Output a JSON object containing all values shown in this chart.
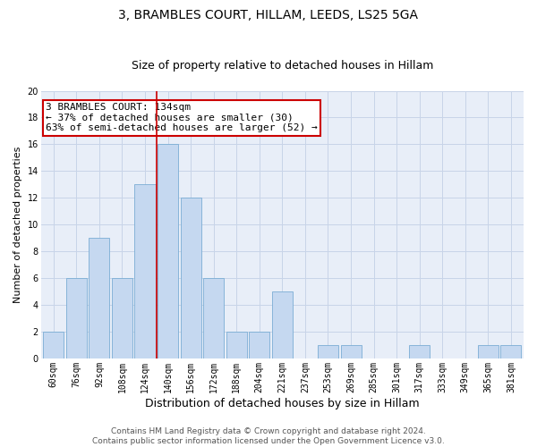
{
  "title": "3, BRAMBLES COURT, HILLAM, LEEDS, LS25 5GA",
  "subtitle": "Size of property relative to detached houses in Hillam",
  "xlabel": "Distribution of detached houses by size in Hillam",
  "ylabel": "Number of detached properties",
  "categories": [
    "60sqm",
    "76sqm",
    "92sqm",
    "108sqm",
    "124sqm",
    "140sqm",
    "156sqm",
    "172sqm",
    "188sqm",
    "204sqm",
    "221sqm",
    "237sqm",
    "253sqm",
    "269sqm",
    "285sqm",
    "301sqm",
    "317sqm",
    "333sqm",
    "349sqm",
    "365sqm",
    "381sqm"
  ],
  "values": [
    2,
    6,
    9,
    6,
    13,
    16,
    12,
    6,
    2,
    2,
    5,
    0,
    1,
    1,
    0,
    0,
    1,
    0,
    0,
    1,
    1
  ],
  "bar_color": "#c5d8f0",
  "bar_edge_color": "#7aadd4",
  "vline_color": "#cc0000",
  "annotation_text": "3 BRAMBLES COURT: 134sqm\n← 37% of detached houses are smaller (30)\n63% of semi-detached houses are larger (52) →",
  "annotation_box_color": "white",
  "annotation_box_edge": "#cc0000",
  "ylim": [
    0,
    20
  ],
  "yticks": [
    0,
    2,
    4,
    6,
    8,
    10,
    12,
    14,
    16,
    18,
    20
  ],
  "grid_color": "#c8d4e8",
  "background_color": "#e8eef8",
  "footer_text": "Contains HM Land Registry data © Crown copyright and database right 2024.\nContains public sector information licensed under the Open Government Licence v3.0.",
  "title_fontsize": 10,
  "subtitle_fontsize": 9,
  "xlabel_fontsize": 9,
  "ylabel_fontsize": 8,
  "tick_fontsize": 7,
  "annotation_fontsize": 8,
  "footer_fontsize": 6.5
}
